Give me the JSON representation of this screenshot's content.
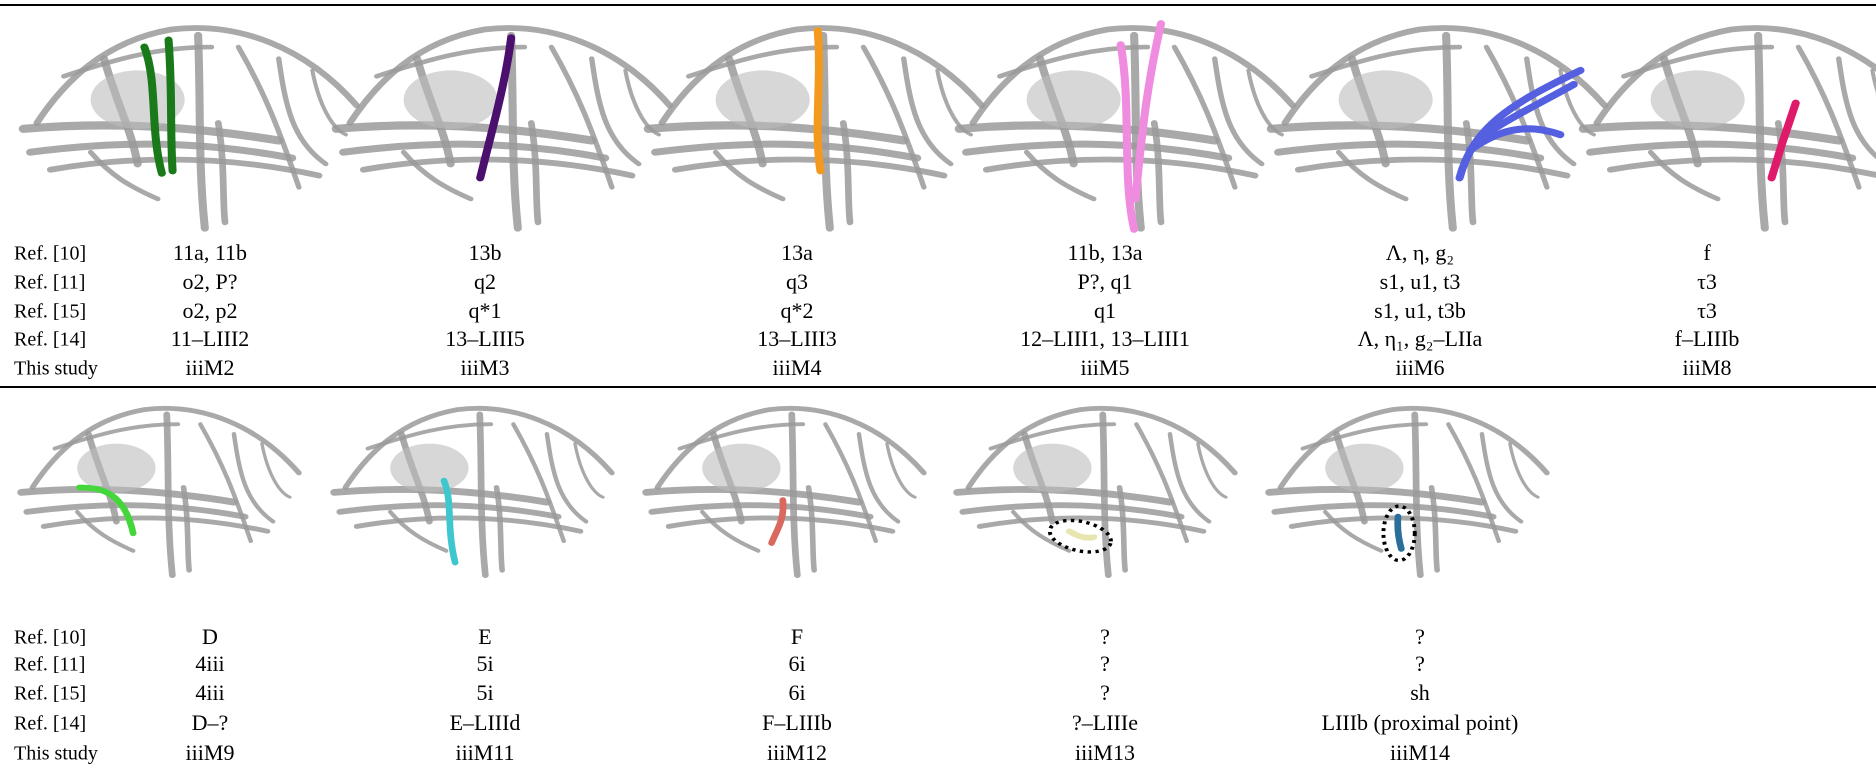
{
  "groups": [
    {
      "row_labels": [
        "Ref. [10]",
        "Ref. [11]",
        "Ref. [15]",
        "Ref. [14]",
        "This study"
      ],
      "columns": [
        [
          "11a, 11b",
          "o2, P?",
          "o2, p2",
          "11–LIII2",
          "iiiM2"
        ],
        [
          "13b",
          "q2",
          "q*1",
          "13–LIII5",
          "iiiM3"
        ],
        [
          "13a",
          "q3",
          "q*2",
          "13–LIII3",
          "iiiM4"
        ],
        [
          "11b, 13a",
          "P?, q1",
          "q1",
          "12–LIII1, 13–LIII1",
          "iiiM5"
        ],
        [
          "Λ, η, g₂",
          "s1, u1, t3",
          "s1, u1, t3b",
          "Λ, η₁, g₂–LIIa",
          "iiiM6"
        ],
        [
          "f",
          "τ3",
          "τ3",
          "f–LIIIb",
          "iiiM8"
        ]
      ]
    },
    {
      "row_labels": [
        "Ref. [10]",
        "Ref. [11]",
        "Ref. [15]",
        "Ref. [14]",
        "This study"
      ],
      "columns": [
        [
          "D",
          "4iii",
          "4iii",
          "D–?",
          "iiiM9"
        ],
        [
          "E",
          "5i",
          "5i",
          "E–LIIId",
          "iiiM11"
        ],
        [
          "F",
          "6i",
          "6i",
          "F–LIIIb",
          "iiiM12"
        ],
        [
          "?",
          "?",
          "?",
          "?–LIIIe",
          "iiiM13"
        ],
        [
          "?",
          "?",
          "sh",
          "LIIIb (proximal point)",
          "iiiM14"
        ]
      ]
    }
  ]
}
